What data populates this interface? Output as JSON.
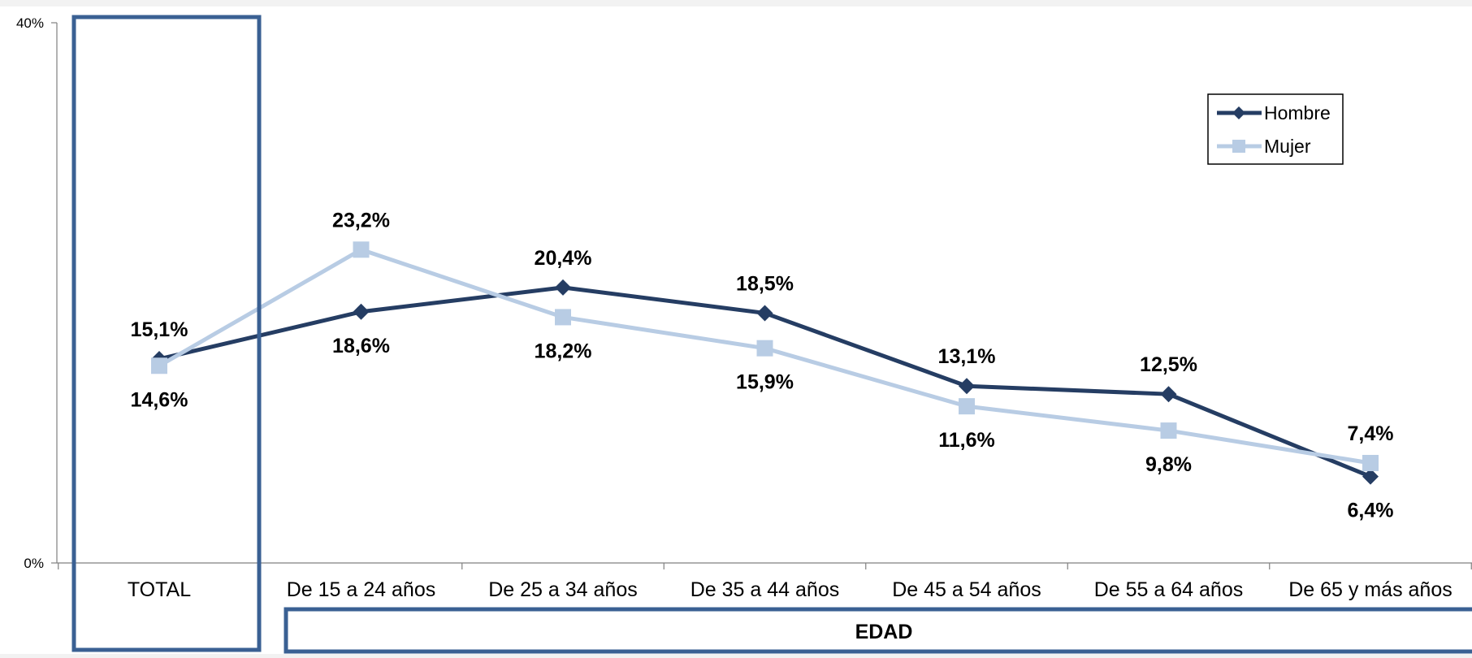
{
  "chart_data": {
    "type": "line",
    "categories": [
      "TOTAL",
      "De 15 a 24 años",
      "De 25 a 34 años",
      "De 35 a 44 años",
      "De 45 a 54 años",
      "De 55 a 64 años",
      "De 65 y más años"
    ],
    "group_label": "EDAD",
    "ylim": [
      0,
      40
    ],
    "yticks": [
      0,
      40
    ],
    "ytick_labels": [
      "0%",
      "40%"
    ],
    "grid": false,
    "legend_position": "top-right",
    "series": [
      {
        "name": "Hombre",
        "color": "#253d63",
        "marker": "diamond",
        "values": [
          15.1,
          18.6,
          20.4,
          18.5,
          13.1,
          12.5,
          6.4
        ],
        "labels": [
          "15,1%",
          "18,6%",
          "20,4%",
          "18,5%",
          "13,1%",
          "12,5%",
          "6,4%"
        ]
      },
      {
        "name": "Mujer",
        "color": "#b8cce4",
        "marker": "square",
        "values": [
          14.6,
          23.2,
          18.2,
          15.9,
          11.6,
          9.8,
          7.4
        ],
        "labels": [
          "14,6%",
          "23,2%",
          "18,2%",
          "15,9%",
          "11,6%",
          "9,8%",
          "7,4%"
        ]
      }
    ],
    "highlight_color": "#3a6093"
  }
}
